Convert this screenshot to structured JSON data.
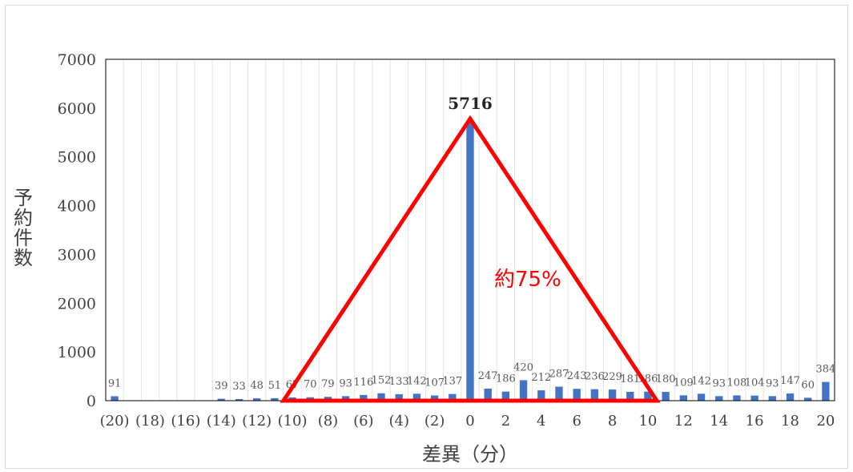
{
  "chart_data": {
    "type": "bar",
    "xlabel": "差異（分）",
    "ylabel": "予約件数",
    "ylim": [
      0,
      7000
    ],
    "yticks": [
      0,
      1000,
      2000,
      3000,
      4000,
      5000,
      6000,
      7000
    ],
    "x": [
      -20,
      -19,
      -18,
      -17,
      -16,
      -15,
      -14,
      -13,
      -12,
      -11,
      -10,
      -9,
      -8,
      -7,
      -6,
      -5,
      -4,
      -3,
      -2,
      -1,
      0,
      1,
      2,
      3,
      4,
      5,
      6,
      7,
      8,
      9,
      10,
      11,
      12,
      13,
      14,
      15,
      16,
      17,
      18,
      19,
      20
    ],
    "x_tick_labels": [
      "(20)",
      "(18)",
      "(16)",
      "(14)",
      "(12)",
      "(10)",
      "(8)",
      "(6)",
      "(4)",
      "(2)",
      "0",
      "2",
      "4",
      "6",
      "8",
      "10",
      "12",
      "14",
      "16",
      "18",
      "20"
    ],
    "values": [
      91,
      0,
      0,
      0,
      0,
      0,
      39,
      33,
      48,
      51,
      67,
      70,
      79,
      93,
      116,
      152,
      133,
      142,
      107,
      137,
      5716,
      247,
      186,
      420,
      212,
      287,
      243,
      236,
      229,
      181,
      186,
      180,
      109,
      142,
      93,
      108,
      104,
      93,
      147,
      60,
      384
    ],
    "data_labels": [
      "91",
      "",
      "",
      "",
      "",
      "",
      "39",
      "33",
      "48",
      "51",
      "67",
      "70",
      "79",
      "93",
      "116",
      "152",
      "133",
      "142",
      "107",
      "137",
      "5716",
      "247",
      "186",
      "420",
      "212",
      "287",
      "243",
      "236",
      "229",
      "181",
      "186",
      "180",
      "109",
      "142",
      "93",
      "108",
      "104",
      "93",
      "147",
      "60",
      "384"
    ],
    "grid": "vertical",
    "bar_color": "#4472c4",
    "annotation": {
      "text": "約75%",
      "shape": "triangle",
      "color": "#ff0000"
    }
  }
}
